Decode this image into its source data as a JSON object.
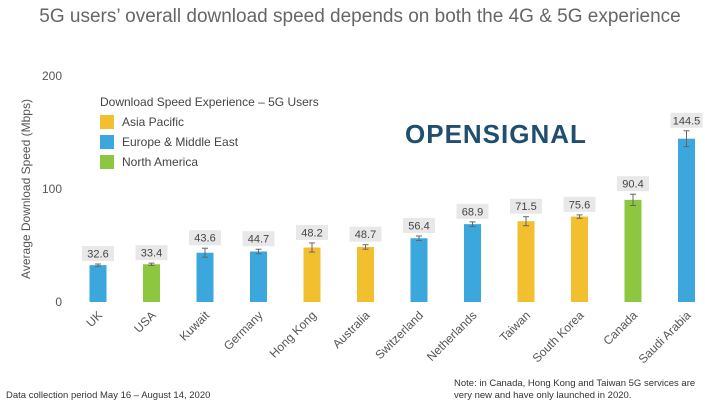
{
  "chart_data": {
    "type": "bar",
    "title": "5G users’ overall download speed depends on both the 4G & 5G experience",
    "y_label": "Average Download Speed (Mbps)",
    "legend_title": "Download Speed Experience – 5G Users",
    "logo": "OPENSIGNAL",
    "footnote": "Data collection period May 16 – August 14, 2020",
    "note": [
      "Note: in Canada, Hong Kong and Taiwan 5G services are",
      "very new and have only launched in 2020."
    ],
    "categories": [
      "UK",
      "USA",
      "Kuwait",
      "Germany",
      "Hong Kong",
      "Australia",
      "Switzerland",
      "Netherlands",
      "Taiwan",
      "South Korea",
      "Canada",
      "Saudi Arabia"
    ],
    "series": [
      {
        "name": "Asia Pacific",
        "color": "#f2bf2f",
        "values": [
          null,
          null,
          null,
          null,
          48.2,
          48.7,
          null,
          null,
          71.5,
          75.6,
          null,
          null
        ],
        "errors": [
          null,
          null,
          null,
          null,
          4,
          2,
          null,
          null,
          4,
          1.5,
          null,
          null
        ]
      },
      {
        "name": "Europe & Middle East",
        "color": "#3ba7dd",
        "values": [
          32.6,
          null,
          43.6,
          44.7,
          null,
          null,
          56.4,
          68.9,
          null,
          null,
          null,
          144.5
        ],
        "errors": [
          1,
          null,
          4,
          2,
          null,
          null,
          2,
          2,
          null,
          null,
          null,
          7
        ]
      },
      {
        "name": "North America",
        "color": "#8dc63f",
        "values": [
          null,
          33.4,
          null,
          null,
          null,
          null,
          null,
          null,
          null,
          null,
          90.4,
          null
        ],
        "errors": [
          null,
          1,
          null,
          null,
          null,
          null,
          null,
          null,
          null,
          null,
          5,
          null
        ]
      }
    ],
    "ylim": [
      0,
      200
    ],
    "yticks": [
      0,
      100,
      200
    ],
    "grid": false
  }
}
